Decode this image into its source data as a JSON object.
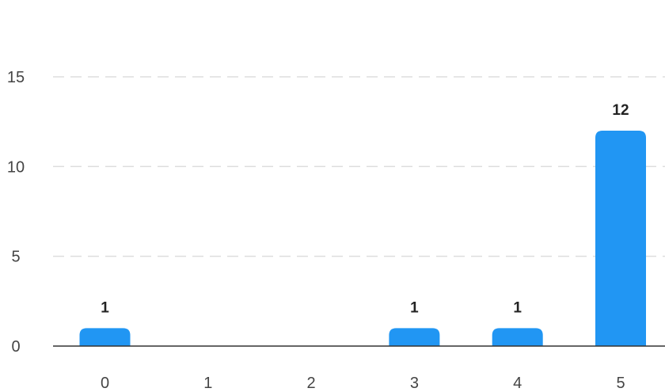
{
  "chart_data": {
    "type": "bar",
    "title": "",
    "xlabel": "",
    "ylabel": "",
    "categories": [
      "0",
      "1",
      "2",
      "3",
      "4",
      "5"
    ],
    "values": [
      1,
      0,
      0,
      1,
      1,
      12
    ],
    "data_labels": [
      "1",
      "",
      "",
      "1",
      "1",
      "12"
    ],
    "ylim": [
      0,
      15
    ],
    "yticks": [
      0,
      5,
      10,
      15
    ],
    "grid": "horizontal-dashed",
    "legend": "none",
    "bar_color": "#2196F3"
  }
}
